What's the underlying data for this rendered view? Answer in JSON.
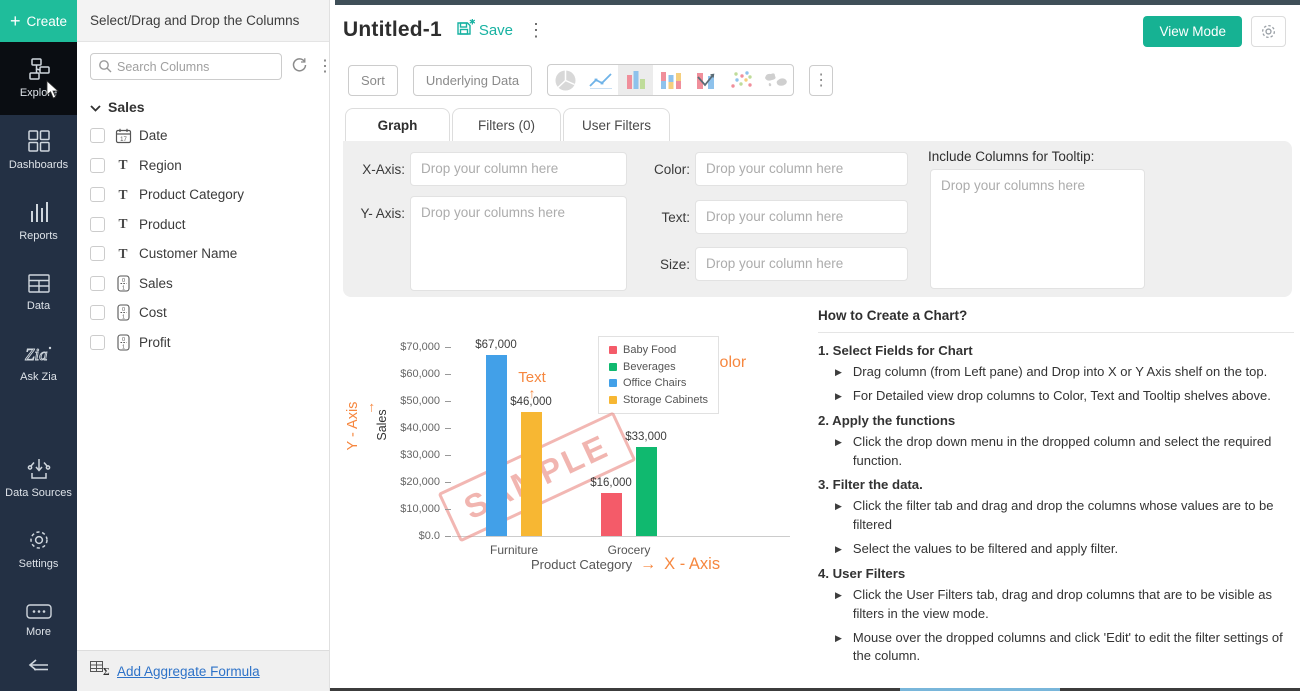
{
  "sidebar": {
    "create_label": "Create",
    "items": [
      {
        "label": "Explore",
        "icon": "explore-icon",
        "active": true
      },
      {
        "label": "Dashboards",
        "icon": "dashboards-icon",
        "active": false
      },
      {
        "label": "Reports",
        "icon": "reports-icon",
        "active": false
      },
      {
        "label": "Data",
        "icon": "data-icon",
        "active": false
      },
      {
        "label": "Ask Zia",
        "icon": "ask-zia-icon",
        "active": false
      },
      {
        "label": "Data Sources",
        "icon": "data-sources-icon",
        "active": false,
        "gap_before": true
      },
      {
        "label": "Settings",
        "icon": "settings-icon",
        "active": false
      },
      {
        "label": "More",
        "icon": "more-icon",
        "active": false
      }
    ]
  },
  "columns_panel": {
    "title": "Select/Drag and Drop the Columns",
    "search_placeholder": "Search Columns",
    "section_label": "Sales",
    "fields": [
      {
        "name": "Date",
        "type": "date"
      },
      {
        "name": "Region",
        "type": "text"
      },
      {
        "name": "Product Category",
        "type": "text"
      },
      {
        "name": "Product",
        "type": "text"
      },
      {
        "name": "Customer Name",
        "type": "text"
      },
      {
        "name": "Sales",
        "type": "number"
      },
      {
        "name": "Cost",
        "type": "number"
      },
      {
        "name": "Profit",
        "type": "number"
      }
    ],
    "footer_link": "Add Aggregate Formula"
  },
  "header": {
    "title": "Untitled-1",
    "save_label": "Save",
    "view_mode_label": "View Mode"
  },
  "toolbar": {
    "sort_label": "Sort",
    "underlying_data_label": "Underlying Data",
    "chart_types": [
      {
        "icon": "pie-chart-icon",
        "selected": false
      },
      {
        "icon": "line-chart-icon",
        "selected": false
      },
      {
        "icon": "bar-chart-icon",
        "selected": true
      },
      {
        "icon": "stacked-bar-icon",
        "selected": false
      },
      {
        "icon": "combo-chart-icon",
        "selected": false
      },
      {
        "icon": "scatter-chart-icon",
        "selected": false
      },
      {
        "icon": "map-chart-icon",
        "selected": false
      }
    ]
  },
  "tabs": [
    {
      "label": "Graph",
      "active": true
    },
    {
      "label": "Filters (0)",
      "active": false
    },
    {
      "label": "User Filters",
      "active": false
    }
  ],
  "shelf": {
    "x_axis_label": "X-Axis:",
    "x_axis_placeholder": "Drop your column here",
    "y_axis_label": "Y- Axis:",
    "y_axis_placeholder": "Drop your columns here",
    "color_label": "Color:",
    "color_placeholder": "Drop your column here",
    "text_label": "Text:",
    "text_placeholder": "Drop your column here",
    "size_label": "Size:",
    "size_placeholder": "Drop your column here",
    "tooltip_label": "Include Columns for Tooltip:",
    "tooltip_placeholder": "Drop your columns here"
  },
  "chart_data": {
    "type": "bar",
    "xlabel": "Product Category",
    "ylabel": "Sales",
    "ylim": [
      0,
      77000
    ],
    "grid": false,
    "legend_position": "top-right",
    "y_ticks": [
      "$70,000",
      "$60,000",
      "$50,000",
      "$40,000",
      "$30,000",
      "$20,000",
      "$10,000",
      "$0.0"
    ],
    "categories": [
      "Furniture",
      "Grocery"
    ],
    "groups": [
      {
        "category": "Furniture",
        "bars": [
          {
            "series": "Office Chairs",
            "value": 67000,
            "label": "$67,000",
            "color": "#42a0e8"
          },
          {
            "series": "Storage Cabinets",
            "value": 46000,
            "label": "$46,000",
            "color": "#f7b733"
          }
        ]
      },
      {
        "category": "Grocery",
        "bars": [
          {
            "series": "Baby Food",
            "value": 16000,
            "label": "$16,000",
            "color": "#f45b69"
          },
          {
            "series": "Beverages",
            "value": 33000,
            "label": "$33,000",
            "color": "#10b96f"
          }
        ]
      }
    ],
    "legend": [
      {
        "name": "Baby Food",
        "color": "#f45b69"
      },
      {
        "name": "Beverages",
        "color": "#10b96f"
      },
      {
        "name": "Office Chairs",
        "color": "#42a0e8"
      },
      {
        "name": "Storage Cabinets",
        "color": "#f7b733"
      }
    ],
    "annotations": {
      "x_axis": "X - Axis",
      "x_arrow": "→",
      "y_axis": "Y - Axis",
      "y_arrow": "→",
      "text": "Text",
      "text_arrow": "↑",
      "color": "Color",
      "color_arrow": "→",
      "watermark": "SAMPLE"
    }
  },
  "instructions": {
    "title": "How to Create a Chart?",
    "steps": [
      {
        "heading": "1. Select Fields for Chart",
        "bullets": [
          "Drag column (from Left pane) and Drop into X or Y Axis shelf on the top.",
          "For Detailed view drop columns to Color, Text and Tooltip shelves above."
        ]
      },
      {
        "heading": "2. Apply the functions",
        "bullets": [
          "Click the drop down menu in the dropped column and select the required function."
        ]
      },
      {
        "heading": "3. Filter the data.",
        "bullets": [
          "Click the filter tab and drag and drop the columns whose values are to be filtered",
          "Select the values to be filtered and apply filter."
        ]
      },
      {
        "heading": "4. User Filters",
        "bullets": [
          "Click the User Filters tab, drag and drop columns that are to be visible as filters in the view mode.",
          "Mouse over the dropped columns and click 'Edit' to edit the filter settings of the column."
        ]
      }
    ]
  },
  "colors": {
    "accent_teal": "#1fbd9b",
    "view_mode_green": "#16b293",
    "sidebar_bg": "#233044",
    "annotation_orange": "#f6873f",
    "link_blue": "#2d72c8"
  }
}
